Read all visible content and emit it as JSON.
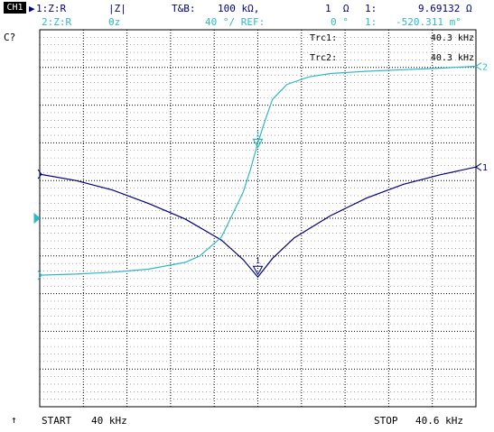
{
  "header": {
    "channel": "CH1",
    "trace1": {
      "id": "1:Z:R",
      "format": "|Z|",
      "scale_label": "T&B:",
      "scale_value": "100 kΩ,",
      "ref_value": "1  Ω",
      "marker_label": "1:",
      "marker_value": "9.69132 Ω"
    },
    "trace2": {
      "id": "2:Z:R",
      "format": "θz",
      "scale_value": "40 °/ REF:",
      "ref_value": "0 °",
      "marker_label": "1:",
      "marker_value": "-520.311 m°"
    }
  },
  "status": {
    "cal_indicator": "C?"
  },
  "marker_table": [
    {
      "label": "Trc1:",
      "value": "40.3 kHz"
    },
    {
      "label": "Trc2:",
      "value": "40.3 kHz"
    }
  ],
  "footer": {
    "start_label": "START",
    "start_value": "40 kHz",
    "stop_label": "STOP",
    "stop_value": "40.6 kHz"
  },
  "marker_ids": {
    "marker1": "1",
    "marker2": "1",
    "trace1_end": "1",
    "trace2_end": "2"
  },
  "colors": {
    "trace1": "#000080",
    "trace2": "#2fb8c8",
    "grid": "#000000",
    "background": "#ffffff"
  },
  "chart_data": {
    "type": "line",
    "x_start_khz": 40,
    "x_stop_khz": 40.6,
    "marker_x_khz": 40.3,
    "grid": true,
    "series": [
      {
        "name": "Trc1",
        "x": [
          40.0,
          40.05,
          40.1,
          40.15,
          40.2,
          40.25,
          40.28,
          40.3,
          40.32,
          40.35,
          40.4,
          40.45,
          40.5,
          40.55,
          40.6
        ],
        "y": [
          0.383,
          0.4,
          0.425,
          0.461,
          0.502,
          0.558,
          0.61,
          0.656,
          0.607,
          0.552,
          0.493,
          0.446,
          0.41,
          0.385,
          0.364
        ]
      },
      {
        "name": "Trc2",
        "x": [
          40.0,
          40.05,
          40.1,
          40.15,
          40.2,
          40.22,
          40.25,
          40.27,
          40.28,
          40.29,
          40.3,
          40.31,
          40.32,
          40.34,
          40.37,
          40.4,
          40.45,
          40.5,
          40.55,
          40.6
        ],
        "y": [
          0.651,
          0.648,
          0.643,
          0.635,
          0.617,
          0.6,
          0.55,
          0.47,
          0.43,
          0.37,
          0.3,
          0.24,
          0.185,
          0.145,
          0.125,
          0.116,
          0.11,
          0.106,
          0.102,
          0.097
        ]
      }
    ]
  }
}
